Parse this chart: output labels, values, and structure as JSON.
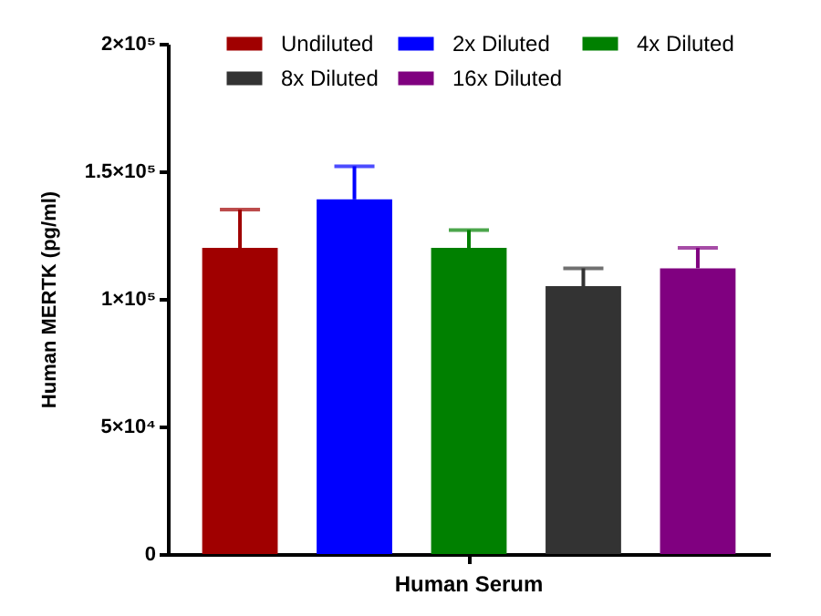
{
  "chart_data": {
    "type": "bar",
    "ylabel": "Human MERTK (pg/ml)",
    "categories": [
      "Human Serum"
    ],
    "series": [
      {
        "name": "Undiluted",
        "color": "#a00000",
        "values": [
          120000
        ],
        "errors": [
          [
            120000,
            135000
          ]
        ]
      },
      {
        "name": "2x Diluted",
        "color": "#0000ff",
        "values": [
          139000
        ],
        "errors": [
          [
            139000,
            152000
          ]
        ]
      },
      {
        "name": "4x Diluted",
        "color": "#008000",
        "values": [
          120000
        ],
        "errors": [
          [
            120000,
            127000
          ]
        ]
      },
      {
        "name": "8x Diluted",
        "color": "#333333",
        "values": [
          105000
        ],
        "errors": [
          [
            105000,
            112000
          ]
        ]
      },
      {
        "name": "16x Diluted",
        "color": "#800080",
        "values": [
          112000
        ],
        "errors": [
          [
            112000,
            120000
          ]
        ]
      }
    ],
    "ylim": [
      0,
      200000
    ],
    "yticks": [
      0,
      {
        "value": 50000,
        "label": "5×10⁴"
      },
      {
        "value": 100000,
        "label": "1×10⁵"
      },
      {
        "value": 150000,
        "label": "1.5×10⁵"
      },
      {
        "value": 200000,
        "label": "2×10⁵"
      }
    ],
    "legend": "top"
  }
}
